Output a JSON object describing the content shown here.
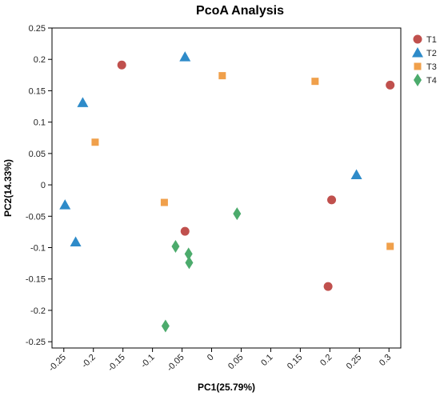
{
  "chart_data": {
    "type": "scatter",
    "title": "PcoA Analysis",
    "xlabel": "PC1(25.79%)",
    "ylabel": "PC2(14.33%)",
    "xlim": [
      -0.27,
      0.32
    ],
    "ylim": [
      -0.26,
      0.25
    ],
    "xticks": [
      -0.25,
      -0.2,
      -0.15,
      -0.1,
      -0.05,
      0,
      0.05,
      0.1,
      0.15,
      0.2,
      0.25,
      0.3
    ],
    "xtick_labels": [
      "-0.25",
      "-0.2",
      "-0.15",
      "-0.1",
      "-0.05",
      "0",
      "0.05",
      "0.1",
      "0.15",
      "0.2",
      "0.25",
      "0.3"
    ],
    "yticks": [
      0.25,
      0.2,
      0.15,
      0.1,
      0.05,
      0,
      -0.05,
      -0.1,
      -0.15,
      -0.2,
      -0.25
    ],
    "ytick_labels": [
      "0.25",
      "0.2",
      "0.15",
      "0.1",
      "0.05",
      "0",
      "-0.05",
      "-0.1",
      "-0.15",
      "-0.2",
      "-0.25"
    ],
    "grid": false,
    "legend_position": "top-right, outside plot",
    "series": [
      {
        "name": "T1",
        "marker": "circle",
        "color": "#c0504d",
        "x": [
          -0.152,
          -0.045,
          0.203,
          0.197,
          0.302
        ],
        "y": [
          0.191,
          -0.074,
          -0.024,
          -0.162,
          0.159
        ]
      },
      {
        "name": "T2",
        "marker": "triangle",
        "color": "#2e8bc9",
        "x": [
          -0.218,
          -0.045,
          -0.248,
          -0.23,
          0.245
        ],
        "y": [
          0.131,
          0.204,
          -0.032,
          -0.091,
          0.016
        ]
      },
      {
        "name": "T3",
        "marker": "square",
        "color": "#f0a04b",
        "x": [
          0.018,
          0.175,
          -0.197,
          -0.08,
          0.302
        ],
        "y": [
          0.174,
          0.165,
          0.068,
          -0.028,
          -0.098
        ]
      },
      {
        "name": "T4",
        "marker": "diamond",
        "color": "#4cab6c",
        "x": [
          0.043,
          -0.061,
          -0.039,
          -0.038,
          -0.078
        ],
        "y": [
          -0.046,
          -0.098,
          -0.11,
          -0.124,
          -0.225
        ]
      }
    ]
  }
}
